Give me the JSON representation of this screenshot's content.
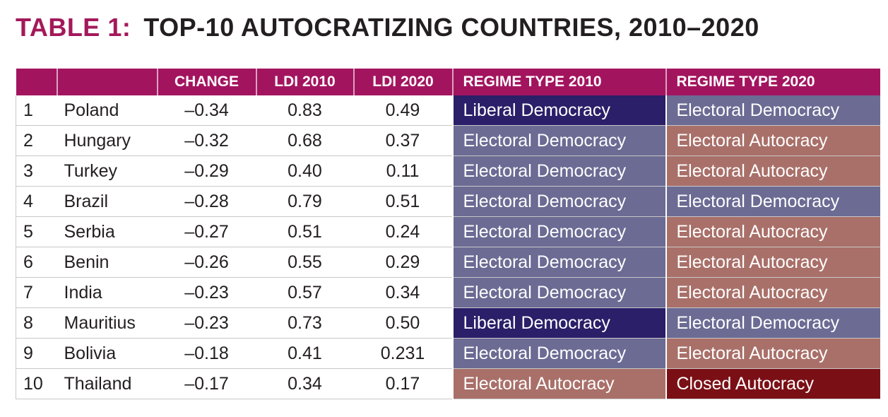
{
  "title": {
    "label": "TABLE 1:",
    "text": "TOP-10 AUTOCRATIZING COUNTRIES, 2010–2020"
  },
  "headers": [
    "",
    "",
    "CHANGE",
    "LDI 2010",
    "LDI 2020",
    "REGIME TYPE 2010",
    "REGIME TYPE 2020"
  ],
  "colors": {
    "header": "#a3145f",
    "Liberal Democracy": "#2a1f68",
    "Electoral Democracy": "#6b6b94",
    "Electoral Autocracy": "#a97069",
    "Closed Autocracy": "#7a1016"
  },
  "rows": [
    {
      "rank": "1",
      "country": "Poland",
      "change": "–0.34",
      "ldi2010": "0.83",
      "ldi2020": "0.49",
      "regime2010": "Liberal Democracy",
      "regime2020": "Electoral Democracy"
    },
    {
      "rank": "2",
      "country": "Hungary",
      "change": "–0.32",
      "ldi2010": "0.68",
      "ldi2020": "0.37",
      "regime2010": "Electoral Democracy",
      "regime2020": "Electoral Autocracy"
    },
    {
      "rank": "3",
      "country": "Turkey",
      "change": "–0.29",
      "ldi2010": "0.40",
      "ldi2020": "0.11",
      "regime2010": "Electoral Democracy",
      "regime2020": "Electoral Autocracy"
    },
    {
      "rank": "4",
      "country": "Brazil",
      "change": "–0.28",
      "ldi2010": "0.79",
      "ldi2020": "0.51",
      "regime2010": "Electoral Democracy",
      "regime2020": "Electoral Democracy"
    },
    {
      "rank": "5",
      "country": "Serbia",
      "change": "–0.27",
      "ldi2010": "0.51",
      "ldi2020": "0.24",
      "regime2010": "Electoral Democracy",
      "regime2020": "Electoral Autocracy"
    },
    {
      "rank": "6",
      "country": "Benin",
      "change": "–0.26",
      "ldi2010": "0.55",
      "ldi2020": "0.29",
      "regime2010": "Electoral Democracy",
      "regime2020": "Electoral Autocracy"
    },
    {
      "rank": "7",
      "country": "India",
      "change": "–0.23",
      "ldi2010": "0.57",
      "ldi2020": "0.34",
      "regime2010": "Electoral Democracy",
      "regime2020": "Electoral Autocracy"
    },
    {
      "rank": "8",
      "country": "Mauritius",
      "change": "–0.23",
      "ldi2010": "0.73",
      "ldi2020": "0.50",
      "regime2010": "Liberal Democracy",
      "regime2020": "Electoral Democracy"
    },
    {
      "rank": "9",
      "country": "Bolivia",
      "change": "–0.18",
      "ldi2010": "0.41",
      "ldi2020": "0.231",
      "regime2010": "Electoral Democracy",
      "regime2020": "Electoral Autocracy"
    },
    {
      "rank": "10",
      "country": "Thailand",
      "change": "–0.17",
      "ldi2010": "0.34",
      "ldi2020": "0.17",
      "regime2010": "Electoral Autocracy",
      "regime2020": "Closed Autocracy"
    }
  ]
}
